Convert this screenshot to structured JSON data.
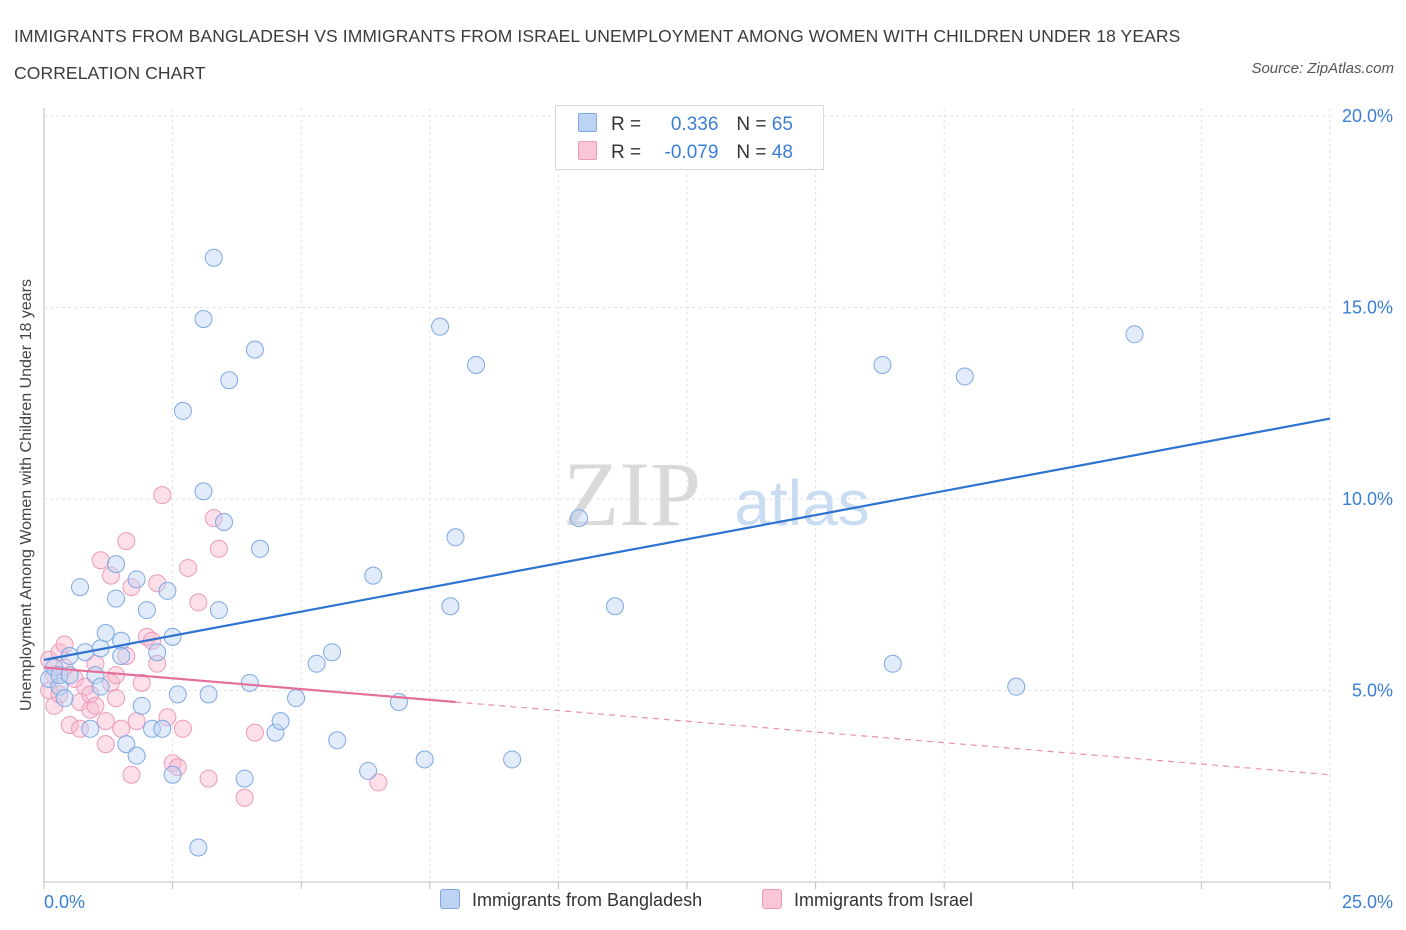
{
  "header": {
    "title": "IMMIGRANTS FROM BANGLADESH VS IMMIGRANTS FROM ISRAEL UNEMPLOYMENT AMONG WOMEN WITH CHILDREN UNDER 18 YEARS CORRELATION CHART",
    "source": "Source: ZipAtlas.com"
  },
  "watermark": {
    "zip": "ZIP",
    "atlas": "atlas"
  },
  "legend": {
    "r_label": "R =",
    "n_label": "N =",
    "series1": {
      "r": "0.336",
      "n": "65"
    },
    "series2": {
      "r": "-0.079",
      "n": "48"
    }
  },
  "chart_data": {
    "type": "scatter",
    "ylabel": "Unemployment Among Women with Children Under 18 years",
    "xlim": [
      0,
      25
    ],
    "ylim": [
      0,
      20
    ],
    "x_tick_labels": [
      {
        "value": 0,
        "label": "0.0%"
      },
      {
        "value": 25,
        "label": "25.0%"
      }
    ],
    "y_tick_labels": [
      {
        "value": 5,
        "label": "5.0%"
      },
      {
        "value": 10,
        "label": "10.0%"
      },
      {
        "value": 15,
        "label": "15.0%"
      },
      {
        "value": 20,
        "label": "20.0%"
      }
    ],
    "grid": true,
    "colors": {
      "bangladesh": "#3a7fd5",
      "israel": "#e87aa0"
    },
    "series": [
      {
        "name": "Immigrants from Bangladesh",
        "trend": {
          "x": [
            0.0,
            25.0
          ],
          "y": [
            5.8,
            12.1
          ]
        },
        "points": [
          [
            0.1,
            5.3
          ],
          [
            0.2,
            5.6
          ],
          [
            0.3,
            5.1
          ],
          [
            0.3,
            5.4
          ],
          [
            0.4,
            4.8
          ],
          [
            0.5,
            5.9
          ],
          [
            0.7,
            7.7
          ],
          [
            0.8,
            6.0
          ],
          [
            0.9,
            4.0
          ],
          [
            1.0,
            5.4
          ],
          [
            1.1,
            6.1
          ],
          [
            1.1,
            5.1
          ],
          [
            1.2,
            6.5
          ],
          [
            1.4,
            7.4
          ],
          [
            1.4,
            8.3
          ],
          [
            1.5,
            6.3
          ],
          [
            1.5,
            5.9
          ],
          [
            1.6,
            3.6
          ],
          [
            1.8,
            3.3
          ],
          [
            1.8,
            7.9
          ],
          [
            1.9,
            4.6
          ],
          [
            2.0,
            7.1
          ],
          [
            2.1,
            4.0
          ],
          [
            2.2,
            6.0
          ],
          [
            2.3,
            4.0
          ],
          [
            2.4,
            7.6
          ],
          [
            2.5,
            2.8
          ],
          [
            2.5,
            6.4
          ],
          [
            2.6,
            4.9
          ],
          [
            2.7,
            12.3
          ],
          [
            3.0,
            0.9
          ],
          [
            3.1,
            14.7
          ],
          [
            3.1,
            10.2
          ],
          [
            3.2,
            4.9
          ],
          [
            3.3,
            16.3
          ],
          [
            3.4,
            7.1
          ],
          [
            3.5,
            9.4
          ],
          [
            3.6,
            13.1
          ],
          [
            3.9,
            2.7
          ],
          [
            4.0,
            5.2
          ],
          [
            4.1,
            13.9
          ],
          [
            4.2,
            8.7
          ],
          [
            4.5,
            3.9
          ],
          [
            4.6,
            4.2
          ],
          [
            4.9,
            4.8
          ],
          [
            5.3,
            5.7
          ],
          [
            5.6,
            6.0
          ],
          [
            5.7,
            3.7
          ],
          [
            6.3,
            2.9
          ],
          [
            6.4,
            8.0
          ],
          [
            6.9,
            4.7
          ],
          [
            7.4,
            3.2
          ],
          [
            7.7,
            14.5
          ],
          [
            7.9,
            7.2
          ],
          [
            8.0,
            9.0
          ],
          [
            8.4,
            13.5
          ],
          [
            9.1,
            3.2
          ],
          [
            10.4,
            9.5
          ],
          [
            11.1,
            7.2
          ],
          [
            16.3,
            13.5
          ],
          [
            16.5,
            5.7
          ],
          [
            17.9,
            13.2
          ],
          [
            18.9,
            5.1
          ],
          [
            21.2,
            14.3
          ],
          [
            0.5,
            5.4
          ]
        ]
      },
      {
        "name": "Immigrants from Israel",
        "trend": {
          "x": [
            0.0,
            8.0
          ],
          "y": [
            5.6,
            4.7
          ]
        },
        "trend_extension": {
          "x": [
            8.0,
            25.0
          ],
          "y": [
            4.7,
            2.8
          ]
        },
        "points": [
          [
            0.1,
            5.0
          ],
          [
            0.1,
            5.8
          ],
          [
            0.2,
            4.6
          ],
          [
            0.2,
            5.4
          ],
          [
            0.3,
            6.0
          ],
          [
            0.3,
            4.9
          ],
          [
            0.4,
            6.2
          ],
          [
            0.4,
            5.6
          ],
          [
            0.5,
            4.1
          ],
          [
            0.6,
            5.3
          ],
          [
            0.7,
            4.7
          ],
          [
            0.7,
            4.0
          ],
          [
            0.8,
            5.1
          ],
          [
            0.9,
            4.5
          ],
          [
            0.9,
            4.9
          ],
          [
            1.0,
            5.7
          ],
          [
            1.0,
            4.6
          ],
          [
            1.1,
            8.4
          ],
          [
            1.2,
            4.2
          ],
          [
            1.2,
            3.6
          ],
          [
            1.3,
            5.2
          ],
          [
            1.3,
            8.0
          ],
          [
            1.4,
            5.4
          ],
          [
            1.4,
            4.8
          ],
          [
            1.5,
            4.0
          ],
          [
            1.6,
            5.9
          ],
          [
            1.6,
            8.9
          ],
          [
            1.7,
            7.7
          ],
          [
            1.7,
            2.8
          ],
          [
            1.8,
            4.2
          ],
          [
            1.9,
            5.2
          ],
          [
            2.0,
            6.4
          ],
          [
            2.1,
            6.3
          ],
          [
            2.2,
            5.7
          ],
          [
            2.2,
            7.8
          ],
          [
            2.3,
            10.1
          ],
          [
            2.4,
            4.3
          ],
          [
            2.5,
            3.1
          ],
          [
            2.6,
            3.0
          ],
          [
            2.7,
            4.0
          ],
          [
            2.8,
            8.2
          ],
          [
            3.0,
            7.3
          ],
          [
            3.2,
            2.7
          ],
          [
            3.3,
            9.5
          ],
          [
            3.4,
            8.7
          ],
          [
            3.9,
            2.2
          ],
          [
            4.1,
            3.9
          ],
          [
            6.5,
            2.6
          ]
        ]
      }
    ]
  },
  "bottom_legend": {
    "items": [
      {
        "label": "Immigrants from Bangladesh"
      },
      {
        "label": "Immigrants from Israel"
      }
    ]
  }
}
